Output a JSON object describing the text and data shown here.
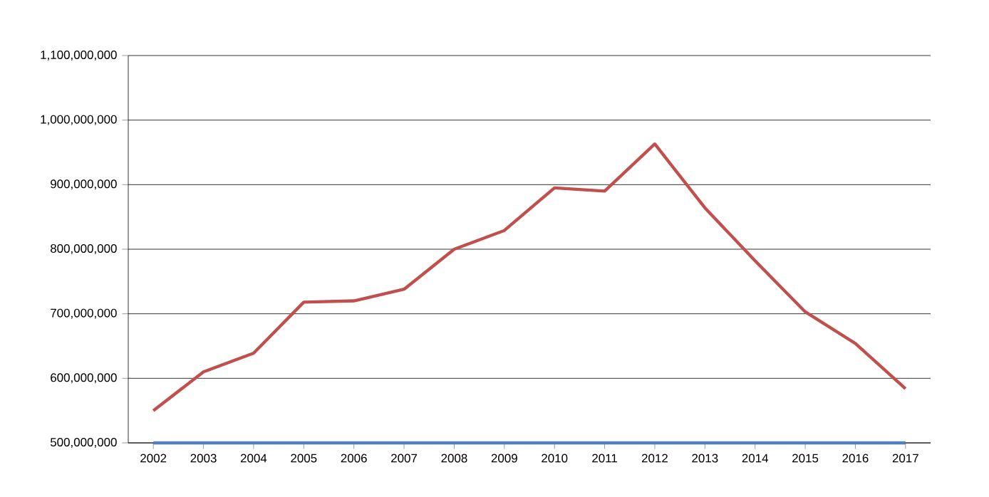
{
  "chart_data": {
    "type": "line",
    "categories": [
      "2002",
      "2003",
      "2004",
      "2005",
      "2006",
      "2007",
      "2008",
      "2009",
      "2010",
      "2011",
      "2012",
      "2013",
      "2014",
      "2015",
      "2016",
      "2017"
    ],
    "series": [
      {
        "color": "#c0504d",
        "values": [
          550000000,
          610000000,
          639000000,
          718000000,
          720000000,
          738000000,
          800000000,
          829000000,
          895000000,
          890000000,
          963000000,
          864000000,
          782000000,
          703000000,
          654000000,
          584000000
        ]
      },
      {
        "color": "#4f81bd",
        "values": [
          500000000,
          500000000,
          500000000,
          500000000,
          500000000,
          500000000,
          500000000,
          500000000,
          500000000,
          500000000,
          500000000,
          500000000,
          500000000,
          500000000,
          500000000,
          500000000
        ]
      }
    ],
    "ylim": [
      500000000,
      1100000000
    ],
    "yticks": [
      {
        "value": 500000000,
        "label": "500,000,000"
      },
      {
        "value": 600000000,
        "label": "600,000,000"
      },
      {
        "value": 700000000,
        "label": "700,000,000"
      },
      {
        "value": 800000000,
        "label": "800,000,000"
      },
      {
        "value": 900000000,
        "label": "900,000,000"
      },
      {
        "value": 1000000000,
        "label": "1,000,000,000"
      },
      {
        "value": 1100000000,
        "label": "1,100,000,000"
      }
    ],
    "grid": "y",
    "marker": "none",
    "line_style": "solid"
  }
}
